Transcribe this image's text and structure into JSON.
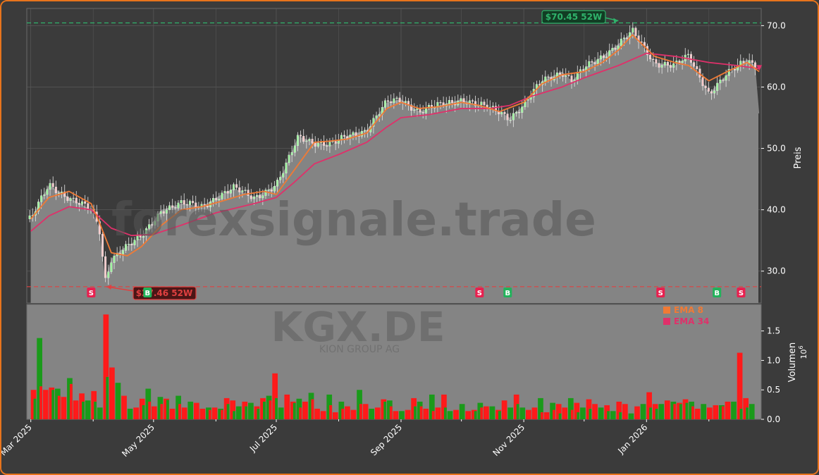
{
  "colors": {
    "background": "#3b3b3b",
    "frame_border": "#e8741c",
    "area_fill": "#848484",
    "up": "#1a9a1a",
    "down": "#ff1a1a",
    "ema8": "#f07a35",
    "ema34": "#e0306a",
    "high_line": "#2fb36b",
    "low_line": "#e04040",
    "buy": "#22b35b",
    "sell": "#e8204f"
  },
  "chart_data": {
    "type": "candlestick",
    "watermark": "forexsignale.trade",
    "ticker": "KGX.DE",
    "company": "KION GROUP AG",
    "price_axis": {
      "label": "Preis",
      "ylim": [
        24.8,
        72.8
      ],
      "ticks": [
        30.0,
        40.0,
        50.0,
        60.0,
        70.0
      ],
      "tick_labels": [
        "30.0",
        "40.0",
        "50.0",
        "60.0",
        "70.0"
      ]
    },
    "volume_axis": {
      "label": "Volumen",
      "multiplier": "10^6",
      "ylim": [
        0,
        1.95
      ],
      "ticks": [
        0.0,
        0.5,
        1.0,
        1.5
      ],
      "tick_labels": [
        "0.0",
        "0.5",
        "1.0",
        "1.5"
      ]
    },
    "x_axis": {
      "range": [
        "2025-02-27",
        "2026-02-27"
      ],
      "ticks": [
        {
          "label": "Mar 2025",
          "date": "2025-03-01"
        },
        {
          "label": "May 2025",
          "date": "2025-05-01"
        },
        {
          "label": "Jul 2025",
          "date": "2025-07-01"
        },
        {
          "label": "Sep 2025",
          "date": "2025-09-01"
        },
        {
          "label": "Nov 2025",
          "date": "2025-11-01"
        },
        {
          "label": "Jan 2026",
          "date": "2026-01-01"
        }
      ]
    },
    "legend": {
      "placement": "top-right of volume panel",
      "entries": [
        {
          "label": "EMA 8",
          "color": "#f07a35"
        },
        {
          "label": "EMA 34",
          "color": "#e0306a"
        }
      ]
    },
    "high_52w": {
      "value": 70.45,
      "label": "$70.45 52W",
      "date": "2025-12-18"
    },
    "low_52w": {
      "value": 27.46,
      "label": "$27.46 52W",
      "date": "2025-04-07"
    },
    "last_price": 55.7,
    "close_series": {
      "dates": [
        "2025-03-01",
        "2025-03-10",
        "2025-03-20",
        "2025-03-31",
        "2025-04-04",
        "2025-04-07",
        "2025-04-10",
        "2025-04-15",
        "2025-04-25",
        "2025-05-05",
        "2025-05-15",
        "2025-05-25",
        "2025-06-01",
        "2025-06-10",
        "2025-06-20",
        "2025-07-01",
        "2025-07-05",
        "2025-07-12",
        "2025-07-20",
        "2025-07-28",
        "2025-08-05",
        "2025-08-15",
        "2025-08-25",
        "2025-09-01",
        "2025-09-10",
        "2025-09-20",
        "2025-10-01",
        "2025-10-10",
        "2025-10-20",
        "2025-10-25",
        "2025-11-01",
        "2025-11-10",
        "2025-11-20",
        "2025-11-25",
        "2025-12-01",
        "2025-12-10",
        "2025-12-18",
        "2025-12-25",
        "2026-01-05",
        "2026-01-15",
        "2026-01-22",
        "2026-02-01",
        "2026-02-10",
        "2026-02-20",
        "2026-02-24",
        "2026-02-26"
      ],
      "values": [
        38.5,
        44.0,
        42.0,
        40.0,
        37.0,
        28.5,
        32.0,
        33.5,
        35.5,
        40.0,
        41.0,
        40.5,
        42.0,
        43.5,
        42.0,
        44.0,
        46.5,
        52.0,
        51.0,
        50.5,
        52.0,
        53.0,
        57.5,
        58.0,
        56.0,
        57.0,
        58.0,
        57.0,
        56.0,
        55.0,
        57.0,
        61.0,
        62.5,
        61.0,
        63.0,
        65.0,
        67.0,
        69.0,
        64.0,
        63.5,
        65.0,
        59.0,
        62.0,
        64.5,
        63.5,
        55.7
      ]
    },
    "ema8": {
      "dates": [
        "2025-03-01",
        "2025-03-10",
        "2025-03-20",
        "2025-03-31",
        "2025-04-04",
        "2025-04-10",
        "2025-04-18",
        "2025-04-25",
        "2025-05-05",
        "2025-05-15",
        "2025-05-25",
        "2025-06-05",
        "2025-06-15",
        "2025-06-25",
        "2025-07-01",
        "2025-07-10",
        "2025-07-20",
        "2025-07-28",
        "2025-08-05",
        "2025-08-15",
        "2025-08-25",
        "2025-09-01",
        "2025-09-10",
        "2025-09-20",
        "2025-10-01",
        "2025-10-10",
        "2025-10-20",
        "2025-11-01",
        "2025-11-10",
        "2025-11-20",
        "2025-12-01",
        "2025-12-10",
        "2025-12-18",
        "2025-12-25",
        "2026-01-05",
        "2026-01-15",
        "2026-01-22",
        "2026-02-01",
        "2026-02-10",
        "2026-02-20",
        "2026-02-26"
      ],
      "values": [
        38.5,
        42.0,
        43.0,
        41.0,
        38.0,
        33.0,
        32.5,
        34.0,
        37.5,
        40.0,
        40.5,
        41.5,
        42.5,
        43.0,
        42.5,
        46.5,
        51.0,
        51.2,
        51.5,
        52.5,
        56.5,
        57.5,
        56.5,
        56.8,
        57.5,
        57.0,
        56.0,
        57.5,
        60.5,
        62.0,
        62.5,
        64.0,
        66.0,
        68.5,
        65.0,
        64.0,
        63.5,
        61.0,
        62.5,
        64.0,
        62.5
      ]
    },
    "ema34": {
      "dates": [
        "2025-03-01",
        "2025-03-10",
        "2025-03-20",
        "2025-03-31",
        "2025-04-10",
        "2025-04-20",
        "2025-05-01",
        "2025-05-15",
        "2025-06-01",
        "2025-06-20",
        "2025-07-01",
        "2025-07-10",
        "2025-07-20",
        "2025-08-01",
        "2025-08-15",
        "2025-08-25",
        "2025-09-01",
        "2025-09-15",
        "2025-10-01",
        "2025-10-15",
        "2025-10-25",
        "2025-11-05",
        "2025-11-20",
        "2025-12-01",
        "2025-12-18",
        "2026-01-01",
        "2026-01-15",
        "2026-02-01",
        "2026-02-15",
        "2026-02-26"
      ],
      "values": [
        36.5,
        39.0,
        40.5,
        40.0,
        37.0,
        35.8,
        36.0,
        37.5,
        39.5,
        41.0,
        42.0,
        44.5,
        47.5,
        49.0,
        51.0,
        53.5,
        55.0,
        55.5,
        56.5,
        56.5,
        57.0,
        58.5,
        60.0,
        61.5,
        63.5,
        65.5,
        65.0,
        64.0,
        63.5,
        63.0
      ]
    },
    "signals": [
      {
        "type": "S",
        "date": "2025-03-31"
      },
      {
        "type": "B",
        "date": "2025-04-28"
      },
      {
        "type": "S",
        "date": "2025-10-10"
      },
      {
        "type": "B",
        "date": "2025-10-24"
      },
      {
        "type": "S",
        "date": "2026-01-08"
      },
      {
        "type": "B",
        "date": "2026-02-05"
      },
      {
        "type": "S",
        "date": "2026-02-17"
      }
    ],
    "volume_series": {
      "start_date": "2025-03-01",
      "up": [
        0.35,
        1.38,
        0.98,
        0.5,
        0.52,
        0.48,
        0.7,
        0.35,
        0.3,
        0.32,
        0.3,
        0.2,
        0.72,
        1.28,
        0.62,
        0.55,
        0.18,
        0.2,
        0.24,
        0.52,
        0.45,
        0.38,
        0.33,
        0.28,
        0.4,
        0.36,
        0.3,
        0.44,
        0.36,
        0.2,
        0.25,
        0.18,
        0.26,
        0.14,
        0.22,
        0.22,
        0.28,
        0.18,
        0.3,
        0.4,
        0.36,
        0.2,
        0.6,
        0.28,
        0.35,
        0.55,
        0.45,
        0.42,
        0.4,
        0.42,
        0.42,
        0.3,
        0.22,
        0.48,
        0.5,
        0.4,
        0.18,
        0.34,
        0.3,
        0.32,
        0.22,
        0.14,
        0.2,
        0.22,
        0.3,
        0.34,
        0.42,
        0.3,
        0.2,
        0.14,
        0.4,
        0.26,
        0.2,
        0.14,
        0.28,
        0.34,
        0.22,
        0.14,
        0.38,
        0.2,
        0.26,
        0.2,
        0.3,
        0.46,
        0.36,
        0.38,
        0.28,
        0.1,
        0.2,
        0.36,
        0.12,
        0.2,
        0.18,
        0.3,
        0.2,
        0.14,
        0.14,
        0.12,
        0.34,
        0.1,
        0.44,
        0.26,
        0.2,
        0.18,
        0.26,
        0.34,
        0.3,
        0.26,
        0.28,
        0.3,
        0.34,
        0.26,
        0.34,
        0.3,
        0.24,
        0.36,
        0.3,
        0.18,
        0.2,
        0.26
      ],
      "down": [
        0.5,
        0.56,
        0.5,
        0.54,
        0.4,
        0.38,
        0.6,
        0.32,
        0.44,
        0.52,
        0.48,
        0.32,
        1.78,
        0.88,
        0.82,
        0.4,
        0.28,
        0.2,
        0.35,
        0.3,
        0.22,
        0.26,
        0.35,
        0.18,
        0.26,
        0.2,
        0.3,
        0.28,
        0.18,
        0.16,
        0.2,
        0.16,
        0.36,
        0.32,
        0.24,
        0.3,
        0.38,
        0.22,
        0.36,
        0.32,
        0.78,
        0.42,
        0.42,
        0.3,
        0.2,
        0.3,
        0.34,
        0.18,
        0.14,
        0.24,
        0.12,
        0.18,
        0.22,
        0.16,
        0.26,
        0.26,
        0.3,
        0.2,
        0.34,
        0.22,
        0.14,
        0.24,
        0.16,
        0.36,
        0.22,
        0.18,
        0.14,
        0.2,
        0.42,
        0.18,
        0.16,
        0.26,
        0.14,
        0.16,
        0.2,
        0.22,
        0.26,
        0.16,
        0.32,
        0.22,
        0.42,
        0.3,
        0.16,
        0.2,
        0.12,
        0.12,
        0.16,
        0.26,
        0.2,
        0.16,
        0.28,
        0.4,
        0.34,
        0.26,
        0.52,
        0.24,
        0.26,
        0.3,
        0.26,
        0.34,
        0.22,
        0.3,
        0.46,
        0.26,
        0.28,
        0.32,
        0.26,
        0.28,
        0.34,
        0.22,
        0.18,
        0.3,
        0.2,
        0.24,
        0.22,
        0.3,
        0.36,
        1.13,
        0.36,
        0.3
      ]
    }
  }
}
